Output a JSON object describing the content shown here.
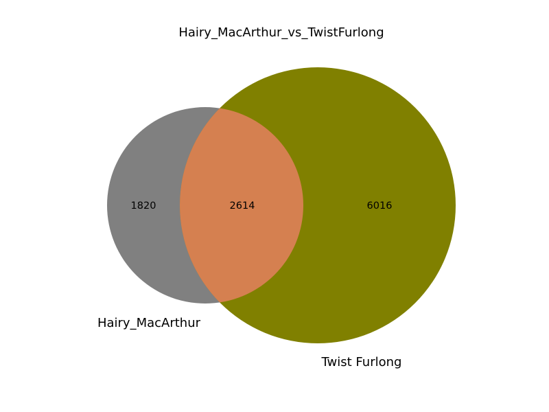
{
  "title": "Hairy_MacArthur_vs_TwistFurlong",
  "sets": [
    {
      "name": "Hairy_MacArthur",
      "color": "#808080"
    },
    {
      "name": "Twist Furlong",
      "color": "#808000"
    }
  ],
  "regions": {
    "left_only": "1820",
    "overlap": "2614",
    "right_only": "6016"
  },
  "overlap_color": "#fa8072"
}
